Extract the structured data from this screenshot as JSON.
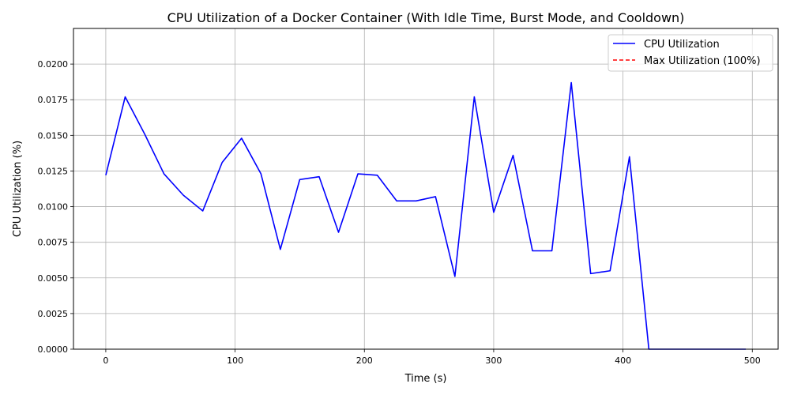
{
  "chart_data": {
    "type": "line",
    "title": "CPU Utilization of a Docker Container (With Idle Time, Burst Mode, and Cooldown)",
    "xlabel": "Time (s)",
    "ylabel": "CPU Utilization (%)",
    "xlim": [
      -25,
      520
    ],
    "ylim": [
      0,
      0.0225
    ],
    "xticks": [
      0,
      100,
      200,
      300,
      400,
      500
    ],
    "xtick_labels": [
      "0",
      "100",
      "200",
      "300",
      "400",
      "500"
    ],
    "yticks": [
      0,
      0.0025,
      0.005,
      0.0075,
      0.01,
      0.0125,
      0.015,
      0.0175,
      0.02
    ],
    "ytick_labels": [
      "0.0000",
      "0.0025",
      "0.0050",
      "0.0075",
      "0.0100",
      "0.0125",
      "0.0150",
      "0.0175",
      "0.0200"
    ],
    "grid": true,
    "legend_position": "top-right",
    "series": [
      {
        "name": "CPU Utilization",
        "color": "#0000ff",
        "style": "solid",
        "x": [
          0,
          15,
          30,
          45,
          60,
          75,
          90,
          105,
          120,
          135,
          150,
          165,
          180,
          195,
          210,
          225,
          240,
          255,
          270,
          285,
          300,
          315,
          330,
          345,
          360,
          375,
          390,
          405,
          420,
          435,
          450,
          465,
          480,
          495
        ],
        "y": [
          0.0122,
          0.0177,
          0.0151,
          0.0123,
          0.0108,
          0.0097,
          0.0131,
          0.0148,
          0.0123,
          0.007,
          0.0119,
          0.0121,
          0.0082,
          0.0123,
          0.0122,
          0.0104,
          0.0104,
          0.0107,
          0.0051,
          0.0177,
          0.0096,
          0.0136,
          0.0069,
          0.0069,
          0.0187,
          0.0053,
          0.0055,
          0.0135,
          0.0,
          0.0,
          0.0,
          0.0,
          0.0,
          0.0
        ]
      },
      {
        "name": "Max Utilization (100%)",
        "color": "#ff0000",
        "style": "dashed",
        "x": [],
        "y": []
      }
    ]
  }
}
